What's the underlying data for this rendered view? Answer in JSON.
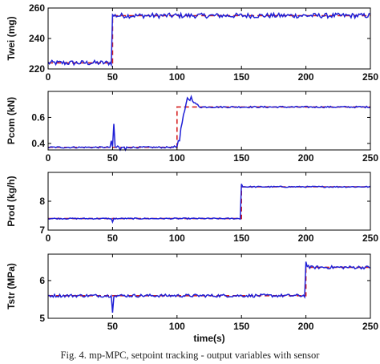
{
  "caption": "Fig. 4. mp-MPC, setpoint tracking - output variables with sensor",
  "colors": {
    "actual": "#1f1fd6",
    "setpoint": "#d62020",
    "axis": "#000000"
  },
  "chart_data": [
    {
      "type": "line",
      "ylabel": "Twei (mg)",
      "xlim": [
        0,
        250
      ],
      "ylim": [
        220,
        260
      ],
      "xticks": [
        0,
        50,
        100,
        150,
        200,
        250
      ],
      "yticks": [
        220,
        240,
        260
      ],
      "xlabel": "",
      "grid": false,
      "series": [
        {
          "role": "setpoint",
          "style": "dashed",
          "steps": [
            [
              0,
              224
            ],
            [
              50,
              255
            ],
            [
              250,
              255
            ]
          ]
        },
        {
          "role": "output",
          "style": "solid",
          "base": [
            [
              0,
              224
            ],
            [
              50,
              255
            ],
            [
              250,
              255
            ]
          ],
          "noise": 1.6,
          "spikes": []
        }
      ]
    },
    {
      "type": "line",
      "ylabel": "Pcom (kN)",
      "xlim": [
        0,
        250
      ],
      "ylim": [
        0.35,
        0.8
      ],
      "xticks": [
        0,
        50,
        100,
        150,
        200,
        250
      ],
      "yticks": [
        0.4,
        0.6
      ],
      "xlabel": "",
      "grid": false,
      "series": [
        {
          "role": "setpoint",
          "style": "dashed",
          "steps": [
            [
              0,
              0.37
            ],
            [
              100,
              0.68
            ],
            [
              250,
              0.68
            ]
          ]
        },
        {
          "role": "output",
          "style": "solid",
          "base": [
            [
              0,
              0.37
            ],
            [
              50,
              0.37
            ],
            [
              100,
              0.38
            ],
            [
              250,
              0.68
            ]
          ],
          "noise": 0.006,
          "spikes": [
            [
              49,
              0.42
            ],
            [
              51,
              0.55
            ],
            [
              54,
              0.38
            ],
            [
              56,
              0.35
            ],
            [
              60,
              0.35
            ],
            [
              98,
              0.38
            ],
            [
              102,
              0.42
            ],
            [
              105,
              0.62
            ],
            [
              108,
              0.75
            ],
            [
              111,
              0.76
            ],
            [
              116,
              0.7
            ],
            [
              125,
              0.68
            ]
          ]
        }
      ]
    },
    {
      "type": "line",
      "ylabel": "Prod (kg/h)",
      "xlim": [
        0,
        250
      ],
      "ylim": [
        7,
        9
      ],
      "xticks": [
        0,
        50,
        100,
        150,
        200,
        250
      ],
      "yticks": [
        7,
        8
      ],
      "xlabel": "",
      "grid": false,
      "series": [
        {
          "role": "setpoint",
          "style": "dashed",
          "steps": [
            [
              0,
              7.4
            ],
            [
              50,
              7.4
            ],
            [
              150,
              8.5
            ],
            [
              250,
              8.5
            ]
          ]
        },
        {
          "role": "output",
          "style": "solid",
          "base": [
            [
              0,
              7.4
            ],
            [
              150,
              8.5
            ],
            [
              250,
              8.5
            ]
          ],
          "noise": 0.02,
          "spikes": [
            [
              49,
              7.4
            ],
            [
              50,
              7.28
            ],
            [
              52,
              7.38
            ],
            [
              150,
              8.6
            ],
            [
              152,
              8.5
            ]
          ]
        }
      ]
    },
    {
      "type": "line",
      "ylabel": "Tstr (MPa)",
      "xlim": [
        0,
        250
      ],
      "ylim": [
        5,
        6.7
      ],
      "xticks": [
        50,
        100,
        150,
        200,
        250
      ],
      "yticks": [
        5,
        6
      ],
      "xlabel": "time(s)",
      "grid": false,
      "series": [
        {
          "role": "setpoint",
          "style": "dashed",
          "steps": [
            [
              0,
              5.6
            ],
            [
              200,
              6.35
            ],
            [
              250,
              6.35
            ]
          ]
        },
        {
          "role": "output",
          "style": "solid",
          "base": [
            [
              0,
              5.6
            ],
            [
              200,
              6.35
            ],
            [
              250,
              6.35
            ]
          ],
          "noise": 0.04,
          "spikes": [
            [
              49,
              5.6
            ],
            [
              50,
              5.15
            ],
            [
              52,
              5.6
            ],
            [
              200,
              6.5
            ],
            [
              202,
              6.4
            ]
          ]
        }
      ]
    }
  ]
}
